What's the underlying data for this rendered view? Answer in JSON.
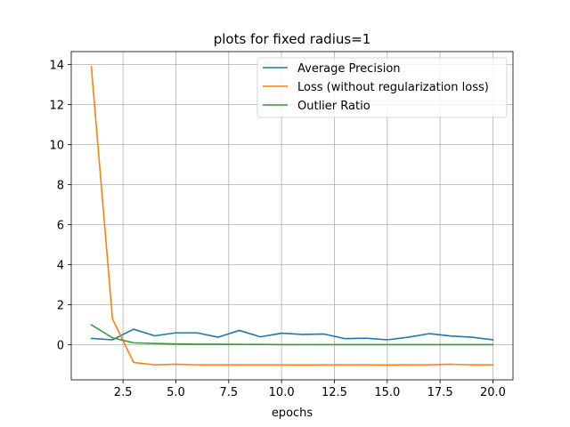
{
  "chart_data": {
    "type": "line",
    "title": "plots for fixed radius=1",
    "xlabel": "epochs",
    "ylabel": "",
    "xlim": [
      0.05,
      20.95
    ],
    "ylim": [
      -1.75,
      14.65
    ],
    "grid": true,
    "legend_position": "top-right",
    "x_ticks": [
      2.5,
      5.0,
      7.5,
      10.0,
      12.5,
      15.0,
      17.5,
      20.0
    ],
    "x_tick_labels": [
      "2.5",
      "5.0",
      "7.5",
      "10.0",
      "12.5",
      "15.0",
      "17.5",
      "20.0"
    ],
    "y_ticks": [
      0,
      2,
      4,
      6,
      8,
      10,
      12,
      14
    ],
    "y_tick_labels": [
      "0",
      "2",
      "4",
      "6",
      "8",
      "10",
      "12",
      "14"
    ],
    "x": [
      1,
      2,
      3,
      4,
      5,
      6,
      7,
      8,
      9,
      10,
      11,
      12,
      13,
      14,
      15,
      16,
      17,
      18,
      19,
      20
    ],
    "series": [
      {
        "name": "Average Precision",
        "color": "#1f77b4",
        "values": [
          0.32,
          0.25,
          0.78,
          0.45,
          0.6,
          0.6,
          0.38,
          0.72,
          0.4,
          0.58,
          0.52,
          0.54,
          0.31,
          0.33,
          0.25,
          0.38,
          0.56,
          0.44,
          0.38,
          0.25
        ]
      },
      {
        "name": "Loss (without regularization loss)",
        "color": "#ff7f0e",
        "values": [
          13.9,
          1.3,
          -0.88,
          -1.0,
          -0.97,
          -1.0,
          -1.0,
          -1.0,
          -1.0,
          -1.0,
          -1.01,
          -1.0,
          -1.0,
          -1.0,
          -1.01,
          -1.0,
          -1.0,
          -0.97,
          -1.0,
          -1.0
        ]
      },
      {
        "name": "Outlier Ratio",
        "color": "#2ca02c",
        "values": [
          1.0,
          0.35,
          0.1,
          0.07,
          0.04,
          0.03,
          0.03,
          0.02,
          0.02,
          0.01,
          0.01,
          0.01,
          0.01,
          0.01,
          0.01,
          0.01,
          0.01,
          0.01,
          0.01,
          0.01
        ]
      }
    ]
  }
}
